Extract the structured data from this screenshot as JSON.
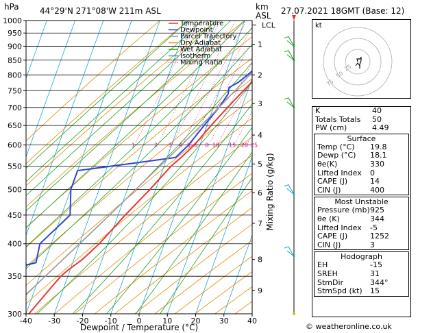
{
  "header": {
    "units": "hPa",
    "location": "44°29'N  271°08'W  211m  ASL",
    "km_units": "km",
    "asl_label": "ASL",
    "datetime": "27.07.2021  18GMT  (Base: 12)"
  },
  "chart_data": {
    "type": "line",
    "title": "Skew-T Log-P sounding",
    "xlabel": "Dewpoint / Temperature (°C)",
    "ylabel": "hPa",
    "right_ylabel": "Mixing Ratio (g/kg)",
    "xlim": [
      -40,
      40
    ],
    "ylim": [
      1000,
      300
    ],
    "x_ticks": [
      -40,
      -30,
      -20,
      -10,
      0,
      10,
      20,
      30,
      40
    ],
    "pressure_ticks": [
      300,
      350,
      400,
      450,
      500,
      550,
      600,
      650,
      700,
      750,
      800,
      850,
      900,
      950,
      1000
    ],
    "km_ticks": [
      {
        "label": "1",
        "p": 907
      },
      {
        "label": "2",
        "p": 800
      },
      {
        "label": "3",
        "p": 712
      },
      {
        "label": "4",
        "p": 625
      },
      {
        "label": "5",
        "p": 555
      },
      {
        "label": "6",
        "p": 493
      },
      {
        "label": "7",
        "p": 435
      },
      {
        "label": "8",
        "p": 375
      },
      {
        "label": "9",
        "p": 330
      }
    ],
    "lcl": {
      "label": "LCL",
      "p": 982
    },
    "mixing_ratio_labels": [
      "1",
      "2",
      "3",
      "4",
      "5",
      "6",
      "8",
      "10",
      "15",
      "20",
      "25"
    ],
    "mixing_ratio_values": [
      1,
      2,
      3,
      4,
      5,
      6,
      8,
      10,
      15,
      20,
      25
    ],
    "legend": [
      {
        "name": "Temperature",
        "color": "#e8352e",
        "style": "solid"
      },
      {
        "name": "Dewpoint",
        "color": "#2b42d8",
        "style": "solid"
      },
      {
        "name": "Parcel Trajectory",
        "color": "#999999",
        "style": "solid"
      },
      {
        "name": "Dry Adiabat",
        "color": "#e68a00",
        "style": "solid"
      },
      {
        "name": "Wet Adiabat",
        "color": "#1aa31a",
        "style": "solid"
      },
      {
        "name": "Isotherm",
        "color": "#19a7d9",
        "style": "solid"
      },
      {
        "name": "Mixing Ratio",
        "color": "#e0007a",
        "style": "dotted"
      }
    ],
    "series": [
      {
        "name": "Temperature",
        "points": [
          [
            1000,
            19.8
          ],
          [
            975,
            19.0
          ],
          [
            950,
            19.5
          ],
          [
            925,
            20.5
          ],
          [
            900,
            19.0
          ],
          [
            850,
            16.0
          ],
          [
            800,
            12.0
          ],
          [
            750,
            8.5
          ],
          [
            700,
            5.0
          ],
          [
            650,
            1.5
          ],
          [
            600,
            -2.0
          ],
          [
            570,
            -5.0
          ],
          [
            550,
            -7.5
          ],
          [
            500,
            -12.0
          ],
          [
            450,
            -17.5
          ],
          [
            400,
            -23.0
          ],
          [
            375,
            -27.0
          ],
          [
            360,
            -30.5
          ],
          [
            350,
            -32.5
          ],
          [
            330,
            -35.0
          ],
          [
            300,
            -39.0
          ]
        ]
      },
      {
        "name": "Dewpoint",
        "points": [
          [
            1000,
            18.1
          ],
          [
            975,
            17.5
          ],
          [
            950,
            16.0
          ],
          [
            925,
            16.5
          ],
          [
            900,
            15.0
          ],
          [
            850,
            12.0
          ],
          [
            800,
            8.0
          ],
          [
            775,
            5.5
          ],
          [
            760,
            3.0
          ],
          [
            740,
            3.5
          ],
          [
            700,
            2.0
          ],
          [
            650,
            -1.0
          ],
          [
            600,
            -4.0
          ],
          [
            570,
            -7.0
          ],
          [
            555,
            -23.0
          ],
          [
            540,
            -40.0
          ],
          [
            500,
            -40.0
          ],
          [
            450,
            -37.0
          ],
          [
            400,
            -44.0
          ],
          [
            370,
            -43.0
          ],
          [
            355,
            -57.0
          ],
          [
            345,
            -68.0
          ],
          [
            330,
            -53.0
          ],
          [
            320,
            -60.0
          ],
          [
            305,
            -60.0
          ],
          [
            300,
            -62.0
          ]
        ]
      },
      {
        "name": "Parcel Trajectory",
        "points": [
          [
            1000,
            19.8
          ],
          [
            982,
            18.0
          ],
          [
            950,
            16.6
          ],
          [
            900,
            14.2
          ],
          [
            850,
            11.6
          ],
          [
            800,
            8.7
          ],
          [
            750,
            5.5
          ],
          [
            700,
            2.0
          ],
          [
            650,
            -2.0
          ],
          [
            600,
            -6.5
          ],
          [
            550,
            -11.5
          ],
          [
            500,
            -17.0
          ],
          [
            450,
            -23.0
          ],
          [
            400,
            -30.0
          ],
          [
            350,
            -38.0
          ],
          [
            300,
            -47.0
          ]
        ]
      }
    ],
    "wind_barbs_p": [
      380,
      490,
      700,
      850,
      900
    ]
  },
  "hodograph": {
    "label": "kt",
    "ring_labels": [
      "25",
      "50",
      "75"
    ]
  },
  "indices": {
    "k_label": "K",
    "k_value": "40",
    "tt_label": "Totals Totals",
    "tt_value": "50",
    "pw_label": "PW (cm)",
    "pw_value": "4.49"
  },
  "surface": {
    "title": "Surface",
    "temp_label": "Temp (°C)",
    "temp_value": "19.8",
    "dewp_label": "Dewp (°C)",
    "dewp_value": "18.1",
    "theta_label": "θe(K)",
    "theta_value": "330",
    "li_label": "Lifted Index",
    "li_value": "0",
    "cape_label": "CAPE (J)",
    "cape_value": "14",
    "cin_label": "CIN (J)",
    "cin_value": "400"
  },
  "most_unstable": {
    "title": "Most Unstable",
    "pres_label": "Pressure (mb)",
    "pres_value": "925",
    "theta_label": "θe (K)",
    "theta_value": "344",
    "li_label": "Lifted Index",
    "li_value": "-5",
    "cape_label": "CAPE (J)",
    "cape_value": "1252",
    "cin_label": "CIN (J)",
    "cin_value": "3"
  },
  "hodograph_table": {
    "title": "Hodograph",
    "eh_label": "EH",
    "eh_value": "-15",
    "sreh_label": "SREH",
    "sreh_value": "31",
    "stmdir_label": "StmDir",
    "stmdir_value": "344°",
    "stmspd_label": "StmSpd (kt)",
    "stmspd_value": "15"
  },
  "credit": "© weatheronline.co.uk"
}
